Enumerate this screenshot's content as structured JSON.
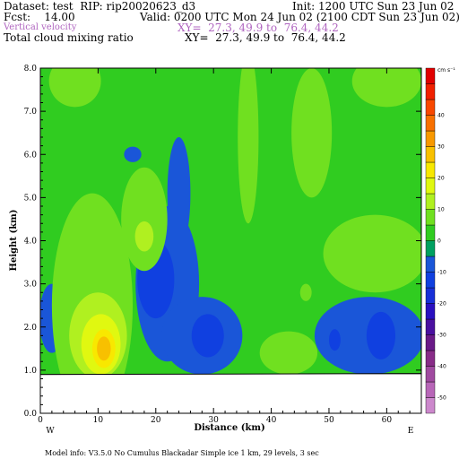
{
  "header": {
    "dataset": "Dataset: test  RIP: rip20020623_d3",
    "init": "Init: 1200 UTC Sun 23 Jun 02",
    "fcst": "Fcst:    14.00",
    "valid": "Valid: 0200 UTC Mon 24 Jun 02 (2100 CDT Sun 23 Jun 02)",
    "field1": "Vertical velocity",
    "field1_xy": "XY=  27.3, 49.9 to  76.4, 44.2",
    "field2": "Total cloud mixing ratio",
    "field2_xy": "XY=  27.3, 49.9 to  76.4, 44.2"
  },
  "footer": {
    "model_info": "Model info: V3.5.0 No Cumulus Blackadar  Simple ice     1 km,  29 levels,     3 sec"
  },
  "chart_data": {
    "type": "heatmap",
    "xlabel": "Distance (km)",
    "ylabel": "Height (km)",
    "xlim": [
      0,
      66
    ],
    "ylim": [
      0.0,
      8.0
    ],
    "x_ticks": [
      0,
      10,
      20,
      30,
      40,
      50,
      60
    ],
    "x_tick_labels": [
      "0",
      "10",
      "20",
      "30",
      "40",
      "50",
      "60"
    ],
    "y_ticks": [
      0.0,
      1.0,
      2.0,
      3.0,
      4.0,
      5.0,
      6.0,
      7.0,
      8.0
    ],
    "y_tick_labels": [
      "0.0",
      "1.0",
      "2.0",
      "3.0",
      "4.0",
      "5.0",
      "6.0",
      "7.0",
      "8.0"
    ],
    "left_end_label": "W",
    "right_end_label": "E",
    "terrain_height_km": 0.9,
    "colorbar": {
      "unit": "cm s⁻¹",
      "levels": [
        -55,
        -50,
        -45,
        -40,
        -35,
        -30,
        -25,
        -20,
        -15,
        -10,
        -5,
        0,
        5,
        10,
        15,
        20,
        25,
        30,
        35,
        40,
        45,
        50,
        55
      ],
      "label_values": [
        -50,
        -40,
        -30,
        -20,
        -10,
        0,
        10,
        20,
        30,
        40
      ],
      "label_texts": [
        "-50",
        "-40",
        "-30",
        "-20",
        "-10",
        "0",
        "10",
        "20",
        "30",
        "40"
      ],
      "colors": [
        "#cc88cc",
        "#b866b8",
        "#a04aa0",
        "#882c88",
        "#6a1a88",
        "#4a10a0",
        "#2a10c0",
        "#1830d8",
        "#1040e0",
        "#1a56d8",
        "#00a060",
        "#30cc20",
        "#70e020",
        "#b0f020",
        "#e0f810",
        "#f8e800",
        "#f8c000",
        "#f89800",
        "#f87000",
        "#f84800",
        "#f02000",
        "#e00000"
      ]
    },
    "regions": [
      {
        "level": -10,
        "color": "#1a56d8",
        "cx": 22,
        "cy": 3.0,
        "rx": 5.5,
        "ry": 1.8,
        "note": "downdraft region"
      },
      {
        "level": -15,
        "color": "#1040e0",
        "cx": 20,
        "cy": 3.1,
        "rx": 3.2,
        "ry": 0.9
      },
      {
        "level": -10,
        "color": "#1a56d8",
        "cx": 24,
        "cy": 5.1,
        "rx": 2.0,
        "ry": 1.3
      },
      {
        "level": -10,
        "color": "#1a56d8",
        "cx": 16,
        "cy": 6.0,
        "rx": 1.5,
        "ry": 0.18
      },
      {
        "level": -10,
        "color": "#1a56d8",
        "cx": 28,
        "cy": 1.8,
        "rx": 7.0,
        "ry": 0.9
      },
      {
        "level": -15,
        "color": "#1040e0",
        "cx": 29,
        "cy": 1.8,
        "rx": 2.8,
        "ry": 0.5
      },
      {
        "level": -10,
        "color": "#1a56d8",
        "cx": 57,
        "cy": 1.8,
        "rx": 9.5,
        "ry": 0.9
      },
      {
        "level": -15,
        "color": "#1040e0",
        "cx": 59,
        "cy": 1.8,
        "rx": 2.5,
        "ry": 0.55
      },
      {
        "level": -15,
        "color": "#1040e0",
        "cx": 51,
        "cy": 1.7,
        "rx": 1.0,
        "ry": 0.25
      },
      {
        "level": -10,
        "color": "#1a56d8",
        "cx": 2,
        "cy": 2.2,
        "rx": 2.2,
        "ry": 0.8
      },
      {
        "level": 5,
        "color": "#70e020",
        "cx": 9,
        "cy": 2.5,
        "rx": 7.0,
        "ry": 2.6
      },
      {
        "level": 10,
        "color": "#b0f020",
        "cx": 10,
        "cy": 1.8,
        "rx": 5.0,
        "ry": 1.0
      },
      {
        "level": 15,
        "color": "#e0f810",
        "cx": 10.5,
        "cy": 1.6,
        "rx": 3.4,
        "ry": 0.7
      },
      {
        "level": 20,
        "color": "#f8e800",
        "cx": 11,
        "cy": 1.5,
        "rx": 2.0,
        "ry": 0.45
      },
      {
        "level": 25,
        "color": "#f8c000",
        "cx": 11,
        "cy": 1.5,
        "rx": 1.2,
        "ry": 0.28
      },
      {
        "level": 5,
        "color": "#70e020",
        "cx": 18,
        "cy": 4.5,
        "rx": 4.0,
        "ry": 1.2
      },
      {
        "level": 10,
        "color": "#b0f020",
        "cx": 18,
        "cy": 4.1,
        "rx": 1.6,
        "ry": 0.35
      },
      {
        "level": 5,
        "color": "#70e020",
        "cx": 47,
        "cy": 6.5,
        "rx": 3.5,
        "ry": 1.5
      },
      {
        "level": 5,
        "color": "#70e020",
        "cx": 60,
        "cy": 7.7,
        "rx": 6.0,
        "ry": 0.6
      },
      {
        "level": 5,
        "color": "#70e020",
        "cx": 58,
        "cy": 3.7,
        "rx": 9.0,
        "ry": 0.9
      },
      {
        "level": 5,
        "color": "#70e020",
        "cx": 36,
        "cy": 6.4,
        "rx": 1.8,
        "ry": 2.0
      },
      {
        "level": 5,
        "color": "#70e020",
        "cx": 43,
        "cy": 1.4,
        "rx": 5.0,
        "ry": 0.5
      },
      {
        "level": 5,
        "color": "#70e020",
        "cx": 6,
        "cy": 7.7,
        "rx": 4.5,
        "ry": 0.6
      },
      {
        "level": 5,
        "color": "#70e020",
        "cx": 46,
        "cy": 2.8,
        "rx": 1.0,
        "ry": 0.2
      }
    ]
  }
}
